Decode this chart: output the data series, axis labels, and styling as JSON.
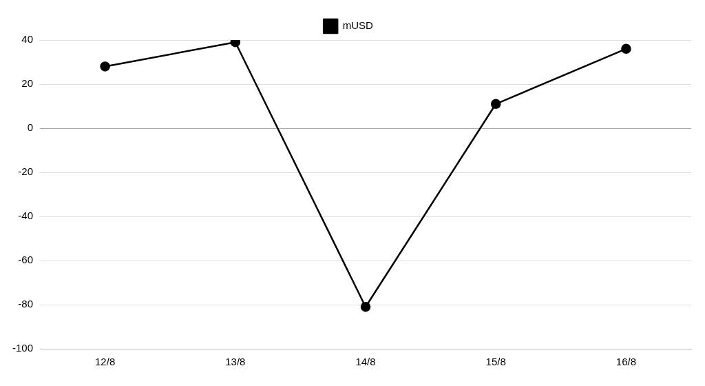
{
  "chart_data": {
    "type": "line",
    "categories": [
      "12/8",
      "13/8",
      "14/8",
      "15/8",
      "16/8"
    ],
    "series": [
      {
        "name": "mUSD",
        "color": "#000000",
        "values": [
          28,
          39,
          -81,
          11,
          36
        ]
      }
    ],
    "ylim": [
      -100,
      40
    ],
    "yticks": [
      -100,
      -80,
      -60,
      -40,
      -20,
      0,
      20,
      40
    ],
    "grid": "y",
    "legend": "top",
    "marker": "circle",
    "line_style": "solid"
  }
}
